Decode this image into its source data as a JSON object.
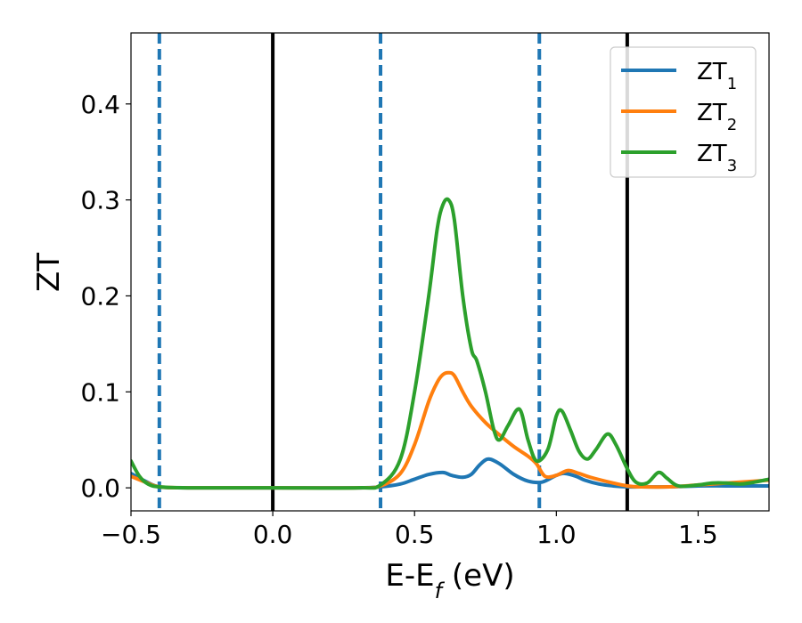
{
  "chart_data": {
    "type": "line",
    "title": "",
    "xlabel": "E-E",
    "xlabel_sub": "f",
    "xlabel_unit": " (eV)",
    "ylabel": "ZT",
    "xlim": [
      -0.5,
      1.75
    ],
    "ylim": [
      -0.024,
      0.474
    ],
    "xticks": [
      -0.5,
      0.0,
      0.5,
      1.0,
      1.5
    ],
    "xtick_labels": [
      "−0.5",
      "0.0",
      "0.5",
      "1.0",
      "1.5"
    ],
    "yticks": [
      0.0,
      0.1,
      0.2,
      0.3,
      0.4
    ],
    "ytick_labels": [
      "0.0",
      "0.1",
      "0.2",
      "0.3",
      "0.4"
    ],
    "grid": false,
    "legend_position": "top-right",
    "vlines_solid": [
      0.0,
      1.25
    ],
    "vlines_dashed": [
      -0.4,
      0.38,
      0.94
    ],
    "vline_solid_color": "#000000",
    "vline_dashed_color": "#1f77b4",
    "series": [
      {
        "name": "ZT",
        "sub": "1",
        "color": "#1f77b4",
        "x": [
          -0.5,
          -0.45,
          -0.4,
          -0.3,
          0.0,
          0.3,
          0.38,
          0.45,
          0.5,
          0.55,
          0.6,
          0.63,
          0.67,
          0.7,
          0.73,
          0.76,
          0.8,
          0.85,
          0.9,
          0.95,
          1.0,
          1.03,
          1.07,
          1.1,
          1.15,
          1.2,
          1.25,
          1.3,
          1.4,
          1.5,
          1.6,
          1.7,
          1.75
        ],
        "y": [
          0.015,
          0.007,
          0.001,
          0.0,
          0.0,
          0.0,
          0.001,
          0.004,
          0.009,
          0.014,
          0.016,
          0.013,
          0.011,
          0.014,
          0.024,
          0.03,
          0.025,
          0.014,
          0.007,
          0.006,
          0.013,
          0.015,
          0.012,
          0.008,
          0.004,
          0.002,
          0.001,
          0.001,
          0.001,
          0.002,
          0.002,
          0.002,
          0.002
        ]
      },
      {
        "name": "ZT",
        "sub": "2",
        "color": "#ff7f0e",
        "x": [
          -0.5,
          -0.45,
          -0.4,
          -0.3,
          0.0,
          0.3,
          0.38,
          0.45,
          0.5,
          0.55,
          0.58,
          0.6,
          0.62,
          0.64,
          0.67,
          0.7,
          0.75,
          0.8,
          0.85,
          0.9,
          0.93,
          0.96,
          1.0,
          1.04,
          1.08,
          1.12,
          1.2,
          1.25,
          1.3,
          1.4,
          1.5,
          1.6,
          1.7,
          1.75
        ],
        "y": [
          0.012,
          0.006,
          0.001,
          0.0,
          0.0,
          0.0,
          0.002,
          0.015,
          0.045,
          0.09,
          0.11,
          0.118,
          0.12,
          0.117,
          0.1,
          0.085,
          0.068,
          0.055,
          0.043,
          0.033,
          0.025,
          0.012,
          0.013,
          0.018,
          0.015,
          0.011,
          0.005,
          0.002,
          0.001,
          0.001,
          0.003,
          0.005,
          0.007,
          0.008
        ]
      },
      {
        "name": "ZT",
        "sub": "3",
        "color": "#2ca02c",
        "x": [
          -0.5,
          -0.47,
          -0.44,
          -0.4,
          -0.3,
          0.0,
          0.3,
          0.38,
          0.45,
          0.5,
          0.55,
          0.58,
          0.6,
          0.62,
          0.64,
          0.67,
          0.7,
          0.72,
          0.75,
          0.78,
          0.8,
          0.83,
          0.87,
          0.9,
          0.93,
          0.97,
          1.0,
          1.02,
          1.05,
          1.08,
          1.11,
          1.14,
          1.18,
          1.21,
          1.25,
          1.28,
          1.32,
          1.36,
          1.39,
          1.43,
          1.5,
          1.55,
          1.6,
          1.65,
          1.7,
          1.75
        ],
        "y": [
          0.028,
          0.012,
          0.004,
          0.001,
          0.0,
          0.0,
          0.0,
          0.003,
          0.03,
          0.1,
          0.2,
          0.27,
          0.295,
          0.3,
          0.28,
          0.2,
          0.145,
          0.132,
          0.1,
          0.06,
          0.05,
          0.065,
          0.082,
          0.05,
          0.028,
          0.04,
          0.075,
          0.08,
          0.06,
          0.038,
          0.03,
          0.04,
          0.056,
          0.045,
          0.02,
          0.006,
          0.005,
          0.016,
          0.01,
          0.002,
          0.003,
          0.005,
          0.005,
          0.004,
          0.006,
          0.009
        ]
      }
    ]
  }
}
